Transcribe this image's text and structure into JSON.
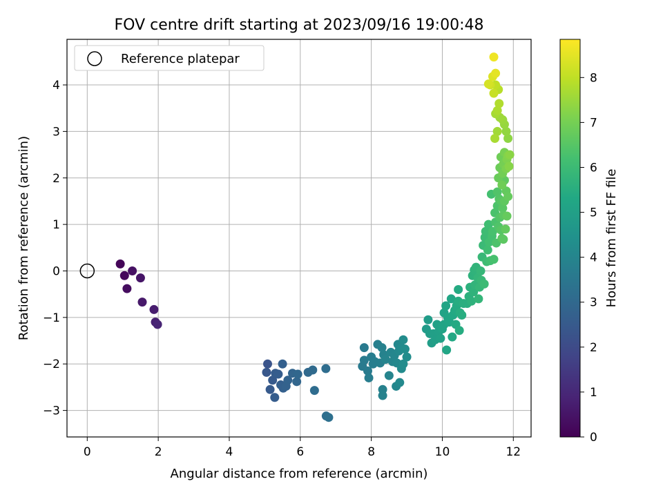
{
  "chart_data": {
    "type": "scatter",
    "title": "FOV centre drift starting at 2023/09/16 19:00:48",
    "xlabel": "Angular distance from reference (arcmin)",
    "ylabel": "Rotation from reference (arcmin)",
    "xlim": [
      -0.57,
      12.5
    ],
    "ylim": [
      -3.57,
      4.98
    ],
    "xticks": [
      0,
      2,
      4,
      6,
      8,
      10,
      12
    ],
    "yticks": [
      -3,
      -2,
      -1,
      0,
      1,
      2,
      3,
      4
    ],
    "grid": true,
    "legend": {
      "placement": "top-left",
      "entries": [
        "Reference platepar"
      ]
    },
    "reference_point": {
      "x": 0,
      "y": 0
    },
    "colorbar": {
      "label": "Hours from first FF file",
      "range": [
        0,
        8.85
      ],
      "ticks": [
        0,
        1,
        2,
        3,
        4,
        5,
        6,
        7,
        8
      ],
      "colormap": "viridis"
    },
    "points": [
      [
        0.93,
        0.15,
        0.1
      ],
      [
        1.05,
        -0.1,
        0.2
      ],
      [
        1.12,
        -0.38,
        0.3
      ],
      [
        1.27,
        0.0,
        0.4
      ],
      [
        1.5,
        -0.15,
        0.5
      ],
      [
        1.55,
        -0.67,
        0.6
      ],
      [
        1.88,
        -0.83,
        0.7
      ],
      [
        1.92,
        -1.1,
        0.8
      ],
      [
        1.98,
        -1.15,
        0.9
      ],
      [
        5.08,
        -2.0,
        2.3
      ],
      [
        5.05,
        -2.18,
        2.4
      ],
      [
        5.15,
        -2.55,
        2.5
      ],
      [
        5.22,
        -2.35,
        2.5
      ],
      [
        5.3,
        -2.2,
        2.55
      ],
      [
        5.28,
        -2.72,
        2.6
      ],
      [
        5.38,
        -2.22,
        2.6
      ],
      [
        5.45,
        -2.45,
        2.65
      ],
      [
        5.5,
        -2.0,
        2.7
      ],
      [
        5.52,
        -2.52,
        2.7
      ],
      [
        5.6,
        -2.48,
        2.75
      ],
      [
        5.65,
        -2.35,
        2.8
      ],
      [
        5.78,
        -2.2,
        2.85
      ],
      [
        5.9,
        -2.38,
        2.9
      ],
      [
        5.93,
        -2.22,
        2.95
      ],
      [
        6.22,
        -2.18,
        3.0
      ],
      [
        6.35,
        -2.13,
        3.05
      ],
      [
        6.4,
        -2.57,
        3.1
      ],
      [
        6.72,
        -2.1,
        3.15
      ],
      [
        6.73,
        -3.12,
        3.2
      ],
      [
        6.8,
        -3.15,
        3.25
      ],
      [
        7.8,
        -1.65,
        3.6
      ],
      [
        7.75,
        -2.05,
        3.6
      ],
      [
        7.8,
        -1.92,
        3.65
      ],
      [
        7.9,
        -2.15,
        3.65
      ],
      [
        7.93,
        -2.3,
        3.7
      ],
      [
        8.0,
        -1.85,
        3.7
      ],
      [
        8.05,
        -2.0,
        3.75
      ],
      [
        8.1,
        -1.95,
        3.75
      ],
      [
        8.18,
        -1.58,
        3.8
      ],
      [
        8.25,
        -1.98,
        3.8
      ],
      [
        8.3,
        -1.65,
        3.85
      ],
      [
        8.32,
        -2.55,
        3.85
      ],
      [
        8.32,
        -2.68,
        3.9
      ],
      [
        8.35,
        -1.8,
        3.9
      ],
      [
        8.4,
        -1.9,
        3.95
      ],
      [
        8.5,
        -2.25,
        3.95
      ],
      [
        8.55,
        -1.75,
        4.0
      ],
      [
        8.6,
        -1.95,
        4.0
      ],
      [
        8.65,
        -1.82,
        4.05
      ],
      [
        8.7,
        -2.48,
        4.05
      ],
      [
        8.72,
        -1.98,
        4.1
      ],
      [
        8.75,
        -1.58,
        4.1
      ],
      [
        8.78,
        -1.72,
        4.15
      ],
      [
        8.8,
        -2.4,
        4.15
      ],
      [
        8.85,
        -2.1,
        4.2
      ],
      [
        8.85,
        -1.65,
        4.2
      ],
      [
        8.9,
        -1.48,
        4.25
      ],
      [
        8.9,
        -2.0,
        4.25
      ],
      [
        8.95,
        -1.68,
        4.3
      ],
      [
        9.0,
        -1.85,
        4.3
      ],
      [
        9.55,
        -1.25,
        4.8
      ],
      [
        9.6,
        -1.05,
        4.85
      ],
      [
        9.65,
        -1.35,
        4.9
      ],
      [
        9.7,
        -1.55,
        4.9
      ],
      [
        9.75,
        -1.35,
        4.95
      ],
      [
        9.8,
        -1.48,
        4.95
      ],
      [
        9.85,
        -1.15,
        5.0
      ],
      [
        9.9,
        -1.3,
        5.0
      ],
      [
        9.92,
        -1.2,
        5.05
      ],
      [
        9.95,
        -1.45,
        5.05
      ],
      [
        10.0,
        -1.25,
        5.1
      ],
      [
        10.05,
        -0.9,
        5.1
      ],
      [
        10.05,
        -1.15,
        5.15
      ],
      [
        10.1,
        -0.75,
        5.15
      ],
      [
        10.12,
        -1.7,
        5.2
      ],
      [
        10.15,
        -1.0,
        5.2
      ],
      [
        10.2,
        -1.1,
        5.25
      ],
      [
        10.25,
        -0.6,
        5.25
      ],
      [
        10.28,
        -1.42,
        5.3
      ],
      [
        10.3,
        -0.95,
        5.3
      ],
      [
        10.35,
        -0.85,
        5.35
      ],
      [
        10.38,
        -1.15,
        5.35
      ],
      [
        10.4,
        -0.75,
        5.4
      ],
      [
        10.45,
        -0.4,
        5.4
      ],
      [
        10.45,
        -0.65,
        5.45
      ],
      [
        10.48,
        -1.28,
        5.45
      ],
      [
        10.5,
        -0.9,
        5.5
      ],
      [
        10.55,
        -0.95,
        5.5
      ],
      [
        10.6,
        -0.7,
        5.55
      ],
      [
        10.7,
        -0.7,
        5.55
      ],
      [
        10.75,
        -0.55,
        5.6
      ],
      [
        10.78,
        -0.35,
        5.6
      ],
      [
        10.82,
        -0.65,
        5.65
      ],
      [
        10.85,
        -0.1,
        5.65
      ],
      [
        10.88,
        -0.45,
        5.7
      ],
      [
        10.9,
        0.02,
        5.7
      ],
      [
        10.92,
        -0.3,
        5.75
      ],
      [
        10.95,
        0.08,
        5.75
      ],
      [
        11.0,
        -0.15,
        5.8
      ],
      [
        11.02,
        -0.6,
        5.8
      ],
      [
        11.05,
        -0.35,
        5.85
      ],
      [
        11.08,
        0.0,
        5.85
      ],
      [
        11.1,
        -0.2,
        5.9
      ],
      [
        11.12,
        0.3,
        5.9
      ],
      [
        11.15,
        0.55,
        5.95
      ],
      [
        11.18,
        -0.28,
        6.0
      ],
      [
        11.2,
        0.72,
        6.0
      ],
      [
        11.22,
        0.85,
        6.05
      ],
      [
        11.25,
        0.2,
        6.05
      ],
      [
        11.28,
        0.45,
        6.1
      ],
      [
        11.3,
        1.0,
        6.1
      ],
      [
        11.32,
        0.62,
        6.15
      ],
      [
        11.35,
        0.22,
        6.15
      ],
      [
        11.38,
        1.65,
        6.2
      ],
      [
        11.4,
        0.75,
        6.2
      ],
      [
        11.42,
        0.85,
        6.25
      ],
      [
        11.45,
        0.25,
        6.25
      ],
      [
        11.48,
        1.25,
        6.3
      ],
      [
        11.5,
        1.05,
        6.3
      ],
      [
        11.52,
        0.6,
        6.35
      ],
      [
        11.55,
        1.4,
        6.35
      ],
      [
        11.55,
        1.7,
        6.4
      ],
      [
        11.58,
        0.95,
        6.4
      ],
      [
        11.6,
        1.55,
        6.45
      ],
      [
        11.62,
        1.15,
        6.45
      ],
      [
        11.65,
        1.5,
        6.5
      ],
      [
        11.65,
        0.88,
        6.5
      ],
      [
        11.68,
        0.7,
        6.55
      ],
      [
        11.7,
        1.35,
        6.55
      ],
      [
        11.72,
        1.2,
        6.6
      ],
      [
        11.72,
        0.68,
        6.6
      ],
      [
        11.75,
        1.5,
        6.65
      ],
      [
        11.75,
        1.95,
        6.65
      ],
      [
        11.78,
        0.9,
        6.7
      ],
      [
        11.8,
        1.72,
        6.7
      ],
      [
        11.82,
        1.18,
        6.75
      ],
      [
        11.85,
        1.6,
        6.75
      ],
      [
        11.58,
        2.0,
        6.8
      ],
      [
        11.62,
        2.22,
        6.85
      ],
      [
        11.65,
        2.45,
        6.9
      ],
      [
        11.68,
        1.85,
        6.9
      ],
      [
        11.7,
        2.1,
        6.95
      ],
      [
        11.72,
        2.3,
        7.0
      ],
      [
        11.75,
        2.55,
        7.05
      ],
      [
        11.8,
        2.2,
        7.1
      ],
      [
        11.82,
        2.4,
        7.15
      ],
      [
        11.85,
        2.48,
        7.2
      ],
      [
        11.88,
        2.25,
        7.25
      ],
      [
        11.9,
        2.5,
        7.3
      ],
      [
        11.85,
        2.85,
        7.35
      ],
      [
        11.8,
        3.0,
        7.4
      ],
      [
        11.75,
        3.15,
        7.45
      ],
      [
        11.7,
        3.25,
        7.5
      ],
      [
        11.62,
        3.3,
        7.55
      ],
      [
        11.55,
        3.0,
        7.6
      ],
      [
        11.5,
        3.38,
        7.65
      ],
      [
        11.48,
        2.85,
        7.7
      ],
      [
        11.55,
        3.45,
        7.75
      ],
      [
        11.6,
        3.6,
        7.8
      ],
      [
        11.58,
        3.9,
        7.9
      ],
      [
        11.5,
        4.0,
        8.0
      ],
      [
        11.45,
        3.82,
        8.1
      ],
      [
        11.35,
        4.0,
        8.2
      ],
      [
        11.3,
        4.02,
        8.3
      ],
      [
        11.42,
        4.18,
        8.4
      ],
      [
        11.5,
        4.25,
        8.5
      ],
      [
        11.45,
        4.6,
        8.65
      ]
    ]
  }
}
